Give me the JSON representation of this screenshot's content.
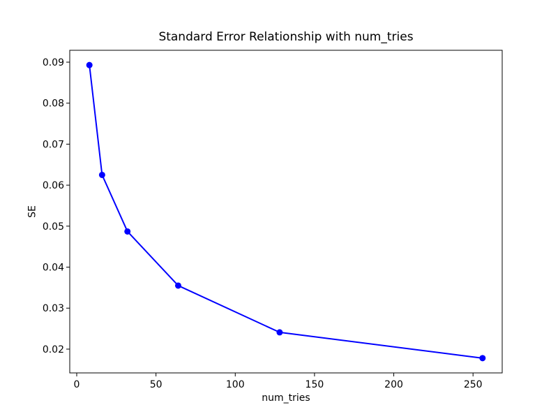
{
  "chart_data": {
    "type": "line",
    "title": "Standard Error Relationship with num_tries",
    "xlabel": "num_tries",
    "ylabel": "SE",
    "x": [
      8,
      16,
      32,
      64,
      128,
      256
    ],
    "y": [
      0.0893,
      0.0625,
      0.0487,
      0.0355,
      0.0241,
      0.0178
    ],
    "series": [
      {
        "name": "SE",
        "x": [
          8,
          16,
          32,
          64,
          128,
          256
        ],
        "y": [
          0.0893,
          0.0625,
          0.0487,
          0.0355,
          0.0241,
          0.0178
        ]
      }
    ],
    "xticks": [
      0,
      50,
      100,
      150,
      200,
      250
    ],
    "yticks": [
      0.02,
      0.03,
      0.04,
      0.05,
      0.06,
      0.07,
      0.08,
      0.09
    ],
    "ytick_decimals": 2,
    "xlim": [
      -4.4,
      268.4
    ],
    "ylim": [
      0.0142,
      0.0929
    ],
    "grid": false,
    "legend": null,
    "line_color": "#0000ff",
    "marker": "o",
    "marker_color": "#0000ff",
    "spine_color": "#000000",
    "background_color": "#ffffff"
  }
}
